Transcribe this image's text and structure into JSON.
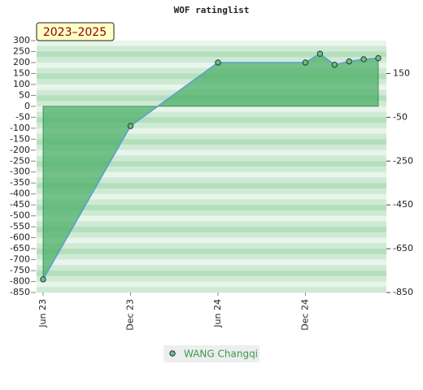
{
  "chart_data": {
    "type": "area",
    "title": "WOF ratinglist",
    "badge": "2023–2025",
    "x": [
      "2023-06",
      "2023-12",
      "2024-06",
      "2024-12",
      "2025-01",
      "2025-02",
      "2025-03",
      "2025-04",
      "2025-05"
    ],
    "xlim": [
      "2023-06",
      "2025-05"
    ],
    "xticks": [
      {
        "value": "2023-06",
        "label": "Jun 23"
      },
      {
        "value": "2023-12",
        "label": "Dec 23"
      },
      {
        "value": "2024-06",
        "label": "Jun 24"
      },
      {
        "value": "2024-12",
        "label": "Dec 24"
      }
    ],
    "series": [
      {
        "name": "WANG Changqi",
        "color": "#5b9bd5",
        "fill": "#4caf68",
        "marker": "#6cc07c",
        "values": [
          -790,
          -90,
          200,
          200,
          240,
          190,
          205,
          215,
          220
        ]
      }
    ],
    "ylim": [
      -850,
      300
    ],
    "yticks": [
      300,
      250,
      200,
      150,
      100,
      50,
      0,
      -50,
      -100,
      -150,
      -200,
      -250,
      -300,
      -350,
      -400,
      -450,
      -500,
      -550,
      -600,
      -650,
      -700,
      -750,
      -800,
      -850
    ],
    "y2lim": [
      -850,
      300
    ],
    "y2ticks": [
      150,
      -50,
      -250,
      -450,
      -650,
      -850
    ],
    "legend": "bottom"
  }
}
